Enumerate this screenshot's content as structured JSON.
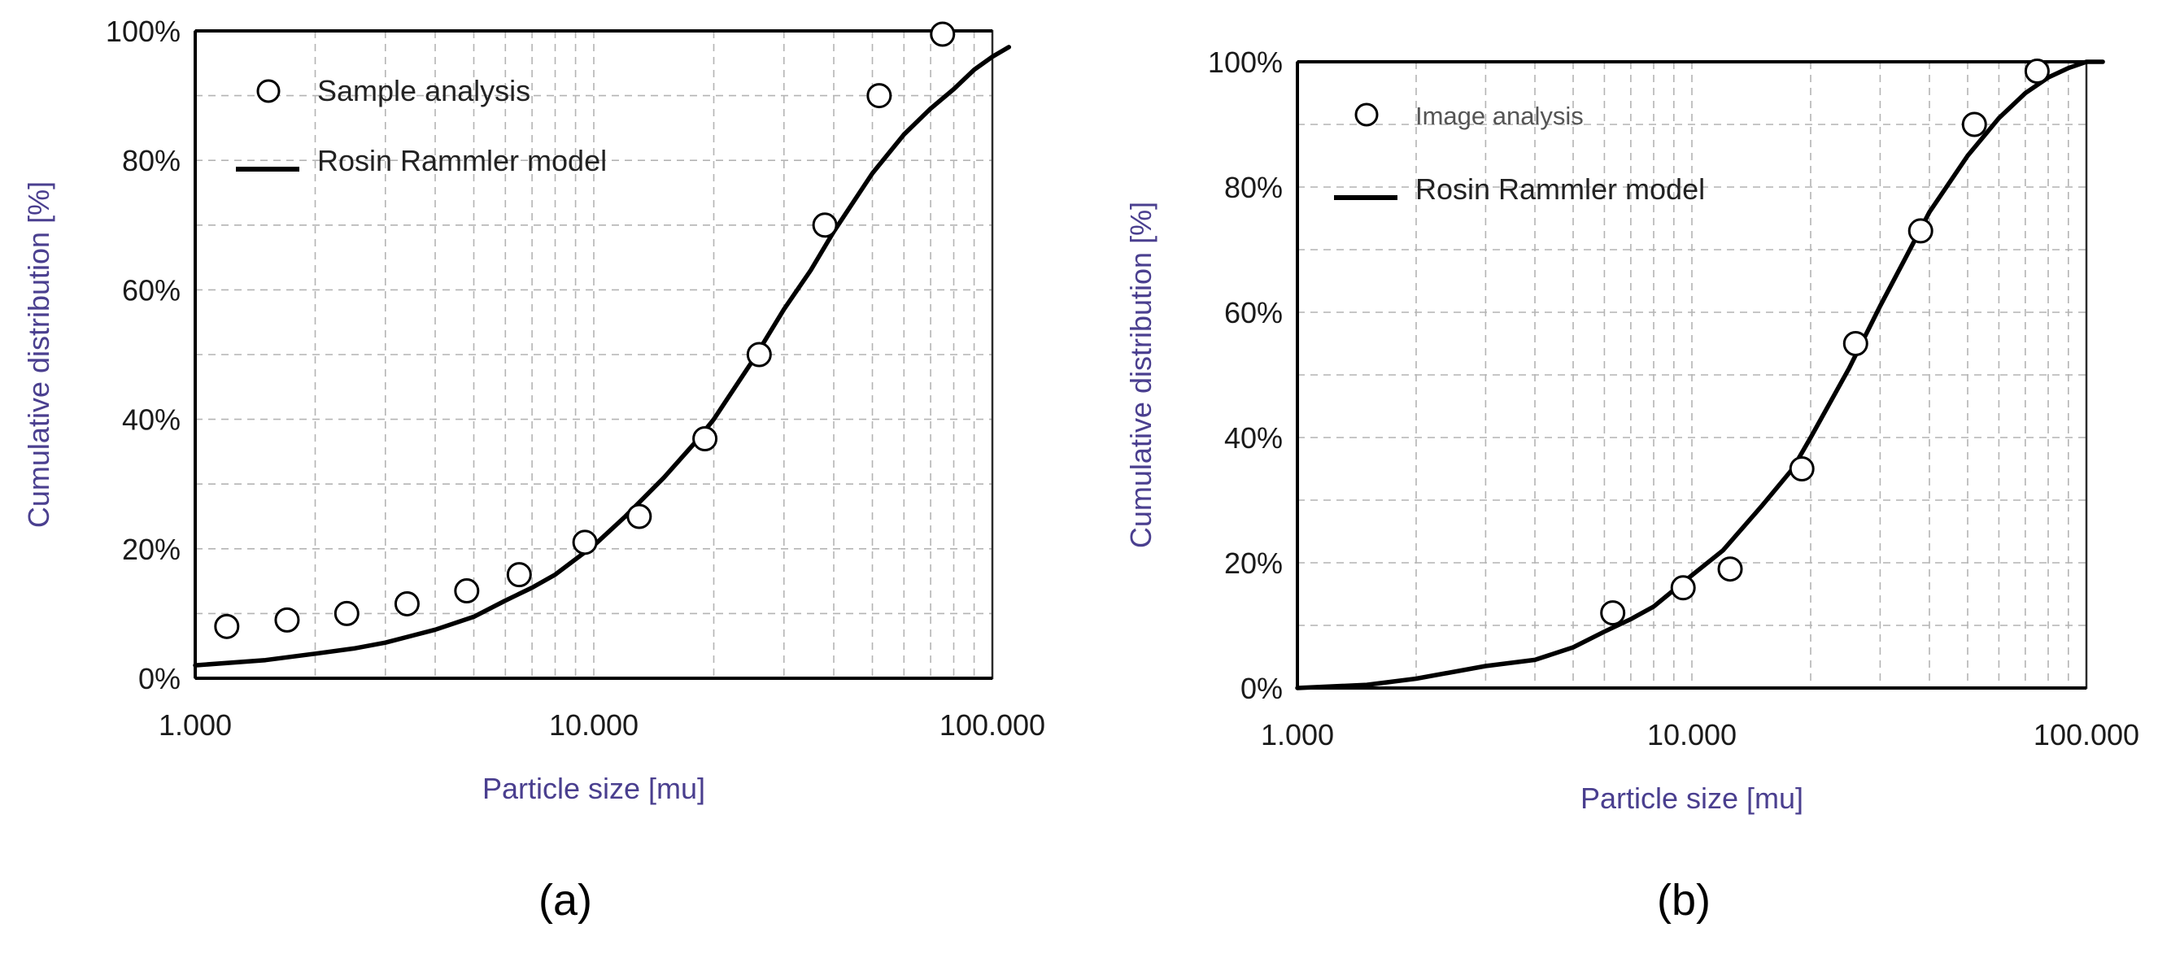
{
  "colors": {
    "axis_title": "#4a3f8f",
    "tick_text": "#1a1a1a",
    "grid": "#b4b4b4",
    "series": "#000000",
    "caption": "#000000"
  },
  "chart_data": [
    {
      "type": "scatter",
      "caption": "(a)",
      "xlabel": "Particle size [mu]",
      "ylabel": "Cumulative distribution [%]",
      "x_scale": "log",
      "xlim": [
        1,
        100
      ],
      "ylim": [
        0,
        100
      ],
      "x_tick_labels": [
        "1.000",
        "10.000",
        "100.000"
      ],
      "y_tick_labels": [
        "0%",
        "20%",
        "40%",
        "60%",
        "80%",
        "100%"
      ],
      "grid": true,
      "legend_position": "top-left",
      "series": [
        {
          "name": "Sample analysis",
          "type": "scatter",
          "marker": "open-circle",
          "x": [
            1.2,
            1.7,
            2.4,
            3.4,
            4.8,
            6.5,
            9.5,
            13,
            19,
            26,
            38,
            52,
            75
          ],
          "y": [
            8,
            9,
            10,
            11.5,
            13.5,
            16,
            21,
            25,
            37,
            50,
            70,
            90,
            99.5
          ]
        },
        {
          "name": "Rosin Rammler model",
          "type": "line",
          "x": [
            1,
            1.5,
            2,
            2.5,
            3,
            4,
            5,
            6,
            7,
            8,
            10,
            12,
            15,
            18,
            20,
            25,
            30,
            35,
            40,
            50,
            60,
            70,
            80,
            90,
            100,
            110
          ],
          "y": [
            2,
            2.8,
            3.8,
            4.6,
            5.5,
            7.5,
            9.5,
            12,
            14,
            16,
            20.5,
            25,
            31,
            36.5,
            40,
            49,
            57,
            63,
            69,
            78,
            84,
            88,
            91,
            94,
            96,
            97.5
          ]
        }
      ]
    },
    {
      "type": "scatter",
      "caption": "(b)",
      "xlabel": "Particle size [mu]",
      "ylabel": "Cumulative distribution [%]",
      "x_scale": "log",
      "xlim": [
        1,
        100
      ],
      "ylim": [
        0,
        100
      ],
      "x_tick_labels": [
        "1.000",
        "10.000",
        "100.000"
      ],
      "y_tick_labels": [
        "0%",
        "20%",
        "40%",
        "60%",
        "80%",
        "100%"
      ],
      "grid": true,
      "legend_position": "top-left",
      "series": [
        {
          "name": "Image analysis",
          "type": "scatter",
          "marker": "open-circle",
          "x": [
            6.3,
            9.5,
            12.5,
            19,
            26,
            38,
            52,
            75
          ],
          "y": [
            12,
            16,
            19,
            35,
            55,
            73,
            90,
            98.5
          ]
        },
        {
          "name": "Rosin Rammler model",
          "type": "line",
          "x": [
            1,
            1.5,
            2,
            3,
            4,
            5,
            6,
            7,
            8,
            10,
            12,
            15,
            18,
            20,
            25,
            30,
            35,
            40,
            50,
            60,
            70,
            80,
            90,
            100,
            110
          ],
          "y": [
            0,
            0.5,
            1.5,
            3.5,
            4.5,
            6.5,
            9,
            11,
            13,
            18,
            22,
            29,
            35,
            40,
            51,
            61,
            69,
            76,
            85,
            91,
            95,
            97.5,
            99,
            100,
            100
          ]
        }
      ]
    }
  ]
}
